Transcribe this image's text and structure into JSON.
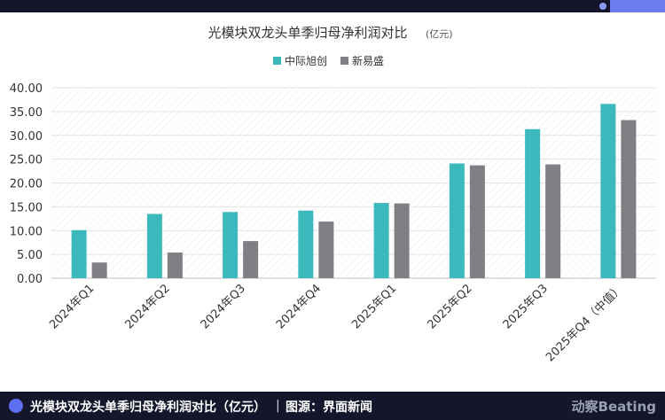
{
  "header": {},
  "chart_data": {
    "type": "bar",
    "title": "光模块双龙头单季归母净利润对比",
    "unit": "(亿元)",
    "categories": [
      "2024年Q1",
      "2024年Q2",
      "2024年Q3",
      "2024年Q4",
      "2025年Q1",
      "2025年Q2",
      "2025年Q3",
      "2025年Q4（中值）"
    ],
    "series": [
      {
        "name": "中际旭创",
        "color": "#3cb9bd",
        "values": [
          10.1,
          13.5,
          13.9,
          14.2,
          15.8,
          24.1,
          31.3,
          36.6
        ]
      },
      {
        "name": "新易盛",
        "color": "#7f7f85",
        "values": [
          3.3,
          5.4,
          7.8,
          11.9,
          15.7,
          23.7,
          23.9,
          33.2
        ]
      }
    ],
    "yticks": [
      "0.00",
      "5.00",
      "10.00",
      "15.00",
      "20.00",
      "25.00",
      "30.00",
      "35.00",
      "40.00"
    ],
    "ylim": [
      0,
      40
    ],
    "grid": true,
    "legend_position": "top-center",
    "xlabel": "",
    "ylabel": ""
  },
  "footer": {
    "caption": "光模块双龙头单季归母净利润对比（亿元）",
    "separator": "|",
    "source": "图源：界面新闻",
    "brand": "动察Beating"
  }
}
